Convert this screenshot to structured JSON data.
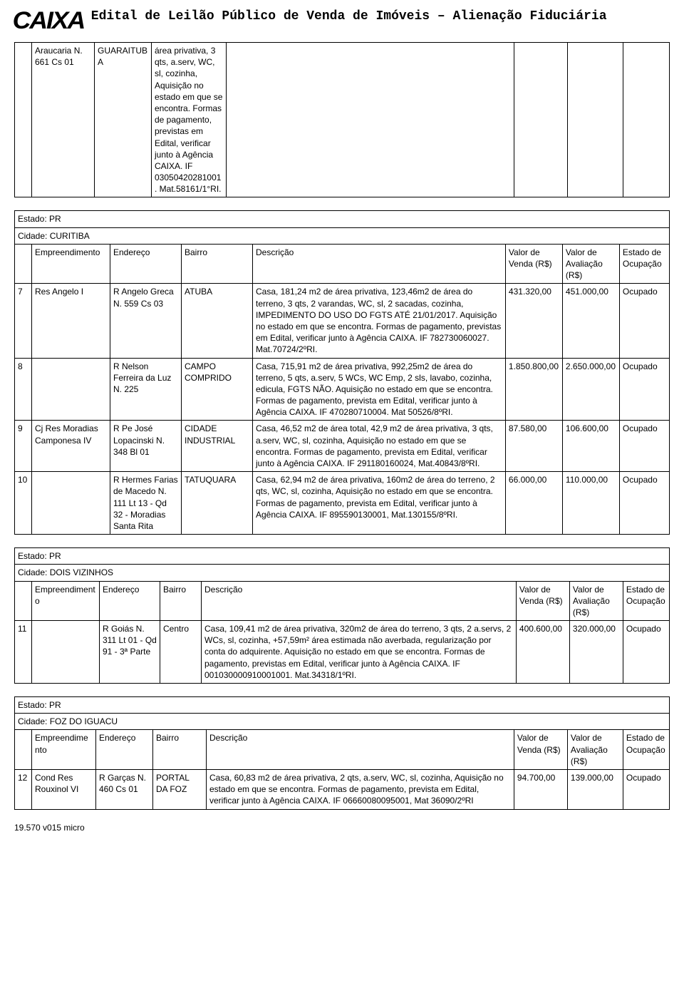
{
  "header": {
    "logo_text": "CAIXA",
    "title": "Edital de Leilão Público de Venda de Imóveis – Alienação Fiduciária"
  },
  "top_row": {
    "c1": "",
    "c2": "Araucaria N. 661 Cs 01",
    "c3": "GUARAITUBA",
    "c4": "área privativa, 3 qts, a.serv, WC, sl, cozinha, Aquisição no estado em que se encontra. Formas de pagamento, previstas em Edital, verificar junto à Agência CAIXA. IF 03050420281001. Mat.58161/1°RI.",
    "c5": "",
    "c6": "",
    "c7": ""
  },
  "sections": [
    {
      "estado": "Estado: PR",
      "cidade": "Cidade: CURITIBA",
      "columns": [
        "",
        "Empreendimento",
        "Endereço",
        "Bairro",
        "Descrição",
        "Valor de Venda (R$)",
        "Valor de Avaliação (R$)",
        "Estado de Ocupação"
      ],
      "rows": [
        {
          "n": "7",
          "emp": "Res Angelo I",
          "end": "R Angelo Greca N. 559 Cs 03",
          "bairro": "ATUBA",
          "desc": "Casa, 181,24 m2 de área privativa, 123,46m2 de área do terreno, 3 qts, 2 varandas, WC, sl, 2 sacadas, cozinha, IMPEDIMENTO DO USO DO FGTS ATÉ 21/01/2017. Aquisição no estado em que se encontra. Formas de pagamento, previstas em Edital, verificar junto à Agência CAIXA. IF 782730060027. Mat.70724/2ºRI.",
          "v1": "431.320,00",
          "v2": "451.000,00",
          "occ": "Ocupado"
        },
        {
          "n": "8",
          "emp": "",
          "end": "R Nelson Ferreira da Luz N. 225",
          "bairro": "CAMPO COMPRIDO",
          "desc": "Casa, 715,91 m2 de área privativa, 992,25m2 de área do terreno, 5 qts, a.serv, 5 WCs, WC Emp, 2 sls, lavabo, cozinha, edicula, FGTS NÃO. Aquisição no estado em que se encontra. Formas de pagamento, prevista em Edital, verificar junto à Agência CAIXA. IF 470280710004. Mat 50526/8ºRI.",
          "v1": "1.850.800,00",
          "v2": "2.650.000,00",
          "occ": "Ocupado"
        },
        {
          "n": "9",
          "emp": "Cj Res Moradias Camponesa IV",
          "end": "R Pe José Lopacinski N. 348 Bl 01",
          "bairro": "CIDADE INDUSTRIAL",
          "desc": "Casa, 46,52 m2 de área total, 42,9 m2 de área privativa, 3 qts, a.serv, WC, sl, cozinha, Aquisição no estado em que se encontra. Formas de pagamento, prevista em Edital, verificar junto à Agência CAIXA. IF 291180160024, Mat.40843/8ºRI.",
          "v1": "87.580,00",
          "v2": "106.600,00",
          "occ": "Ocupado"
        },
        {
          "n": "10",
          "emp": "",
          "end": "R Hermes Farias de Macedo N. 111 Lt 13 - Qd 32 - Moradias Santa Rita",
          "bairro": "TATUQUARA",
          "desc": "Casa, 62,94 m2 de área privativa, 160m2 de área do terreno, 2 qts, WC, sl, cozinha, Aquisição no estado em que se encontra. Formas de pagamento, prevista em Edital, verificar junto à Agência CAIXA. IF 895590130001, Mat.130155/8ºRI.",
          "v1": "66.000,00",
          "v2": "110.000,00",
          "occ": "Ocupado"
        }
      ]
    },
    {
      "estado": "Estado: PR",
      "cidade": "Cidade: DOIS VIZINHOS",
      "columns": [
        "",
        "Empreendimento",
        "Endereço",
        "Bairro",
        "Descrição",
        "Valor de Venda (R$)",
        "Valor de Avaliação (R$)",
        "Estado de Ocupação"
      ],
      "rows": [
        {
          "n": "11",
          "emp": "",
          "end": "R Goiás N. 311 Lt 01 - Qd 91 - 3ª Parte",
          "bairro": "Centro",
          "desc": "Casa, 109,41 m2 de área privativa, 320m2 de área do terreno, 3 qts, 2 a.servs, 2 WCs, sl, cozinha, +57,59m² área estimada não averbada, regularização por conta do adquirente. Aquisição no estado em que se encontra. Formas de pagamento, previstas em Edital, verificar junto à Agência CAIXA. IF 001030000910001001. Mat.34318/1ºRI.",
          "v1": "400.600,00",
          "v2": "320.000,00",
          "occ": "Ocupado"
        }
      ]
    },
    {
      "estado": "Estado: PR",
      "cidade": "Cidade: FOZ DO IGUACU",
      "columns": [
        "",
        "Empreendimento",
        "Endereço",
        "Bairro",
        "Descrição",
        "Valor de Venda (R$)",
        "Valor de Avaliação (R$)",
        "Estado de Ocupação"
      ],
      "rows": [
        {
          "n": "12",
          "emp": "Cond Res Rouxinol VI",
          "end": "R Garças N. 460 Cs 01",
          "bairro": "PORTAL DA FOZ",
          "desc": "Casa, 60,83 m2 de área privativa, 2 qts, a.serv, WC, sl, cozinha, Aquisição no estado em que se encontra. Formas de pagamento, prevista em Edital, verificar junto à Agência CAIXA. IF 06660080095001, Mat 36090/2ºRI",
          "v1": "94.700,00",
          "v2": "139.000,00",
          "occ": "Ocupado"
        }
      ]
    }
  ],
  "footer": "19.570 v015   micro"
}
